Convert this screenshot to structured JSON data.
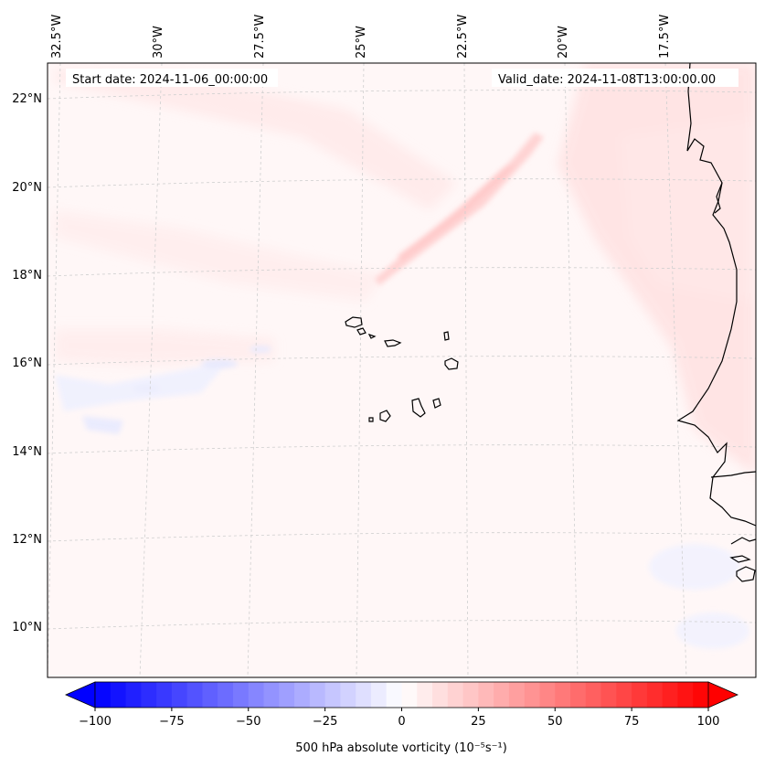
{
  "map": {
    "start_date": "Start date: 2024-11-06_00:00:00",
    "valid_date": "Valid_date: 2024-11-08T13:00:00.00",
    "lon_labels": [
      "32.5°W",
      "30°W",
      "27.5°W",
      "25°W",
      "22.5°W",
      "20°W",
      "17.5°W"
    ],
    "lat_labels": [
      "22°N",
      "20°N",
      "18°N",
      "16°N",
      "14°N",
      "12°N",
      "10°N"
    ]
  },
  "colorbar": {
    "label": "500 hPa absolute vorticity (10⁻⁵s⁻¹)",
    "min": -100,
    "max": 100,
    "step": 5,
    "ticks": [
      "−100",
      "−75",
      "−50",
      "−25",
      "0",
      "25",
      "50",
      "75",
      "100"
    ],
    "colors": {
      "negative": "#0000ff",
      "neutral": "#ffffff",
      "positive": "#ff0000"
    }
  },
  "features": {
    "islands": "Cape Verde",
    "coast": "West Africa"
  }
}
